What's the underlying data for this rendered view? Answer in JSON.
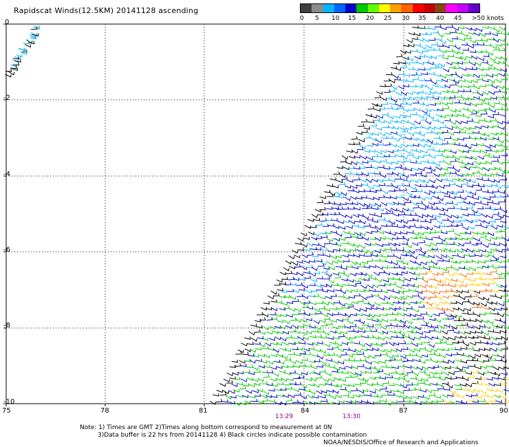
{
  "title": "Rapidscat Winds(12.5KM) 20141128 ascending",
  "legend": {
    "colors": [
      "#404040",
      "#8c8c8c",
      "#00b4ff",
      "#0064ff",
      "#0000c8",
      "#00c800",
      "#64ff00",
      "#ffff00",
      "#ffa000",
      "#ff6400",
      "#ff0000",
      "#c80000",
      "#8b4513",
      "#ff00ff",
      "#c800ff",
      "#6400c8"
    ],
    "labels": [
      "0",
      "5",
      "10",
      "15",
      "20",
      "25",
      "30",
      "35",
      "40",
      "45",
      ">50 knots"
    ]
  },
  "axes": {
    "x_ticks": [
      "75",
      "78",
      "81",
      "84",
      "87",
      "90"
    ],
    "y_ticks": [
      "0",
      "-2",
      "-4",
      "-6",
      "-8",
      "-10"
    ],
    "times": [
      "13:29",
      "13:30"
    ]
  },
  "notes": {
    "line1": "Note: 1) Times are GMT 2)Times along bottom correspond to measurement at 0N",
    "line2": "3)Data buffer is 22 hrs from 20141128 4) Black circles indicate possible contamination",
    "line3": "NOAA/NESDIS/Office of Research and Applications"
  },
  "map_colors": {
    "grid": "#000000",
    "calm": "#000000",
    "light": "#00b4ff",
    "moderate": "#0000c8",
    "fresh": "#00c800",
    "strong": "#ffd000",
    "gale": "#ff6400"
  }
}
